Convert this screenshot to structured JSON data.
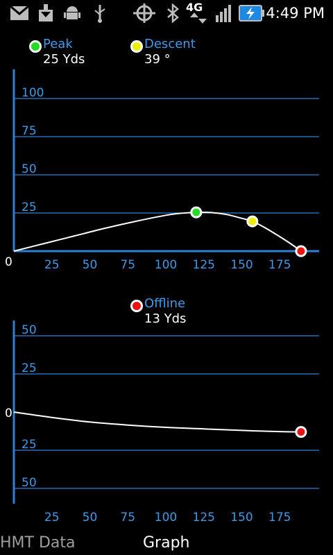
{
  "status_bar": {
    "time": "4:49 PM",
    "network": "4G",
    "icons": [
      "gmail-icon",
      "download-icon",
      "android-debug-icon",
      "usb-icon",
      "gps-icon",
      "bluetooth-icon",
      "network-4g-icon",
      "signal-icon",
      "battery-charging-icon"
    ]
  },
  "top_legend": {
    "peak": {
      "label": "Peak",
      "value": "25 Yds",
      "color": "#22dd22"
    },
    "descent": {
      "label": "Descent",
      "value": "39 °",
      "color": "#eeee00"
    }
  },
  "bottom_legend": {
    "offline": {
      "label": "Offline",
      "value": "13 Yds",
      "color": "#ee1111"
    }
  },
  "chart_data": [
    {
      "type": "line",
      "x_ticks": [
        "25",
        "50",
        "75",
        "100",
        "125",
        "150",
        "175"
      ],
      "y_ticks": [
        "25",
        "50",
        "75",
        "100"
      ],
      "origin_label": "0",
      "xlim": [
        0,
        200
      ],
      "ylim": [
        0,
        110
      ],
      "series": [
        {
          "x": [
            0,
            20,
            40,
            60,
            80,
            100,
            110,
            120,
            130,
            140,
            150,
            157,
            165,
            175,
            182,
            189
          ],
          "y": [
            0,
            5,
            10,
            15,
            19.5,
            23.5,
            24.8,
            25.4,
            25.3,
            24,
            21.5,
            19.5,
            15.5,
            9.5,
            5,
            0
          ]
        }
      ],
      "markers": [
        {
          "x": 120,
          "y": 25.4,
          "color": "#22dd22"
        },
        {
          "x": 157,
          "y": 19.5,
          "color": "#eeee00"
        },
        {
          "x": 189,
          "y": 0,
          "color": "#ee1111"
        }
      ]
    },
    {
      "type": "line",
      "x_ticks": [
        "25",
        "50",
        "75",
        "100",
        "125",
        "150",
        "175"
      ],
      "y_ticks_top": [
        "50",
        "25"
      ],
      "y_ticks_bottom": [
        "25",
        "50"
      ],
      "origin_label": "0",
      "xlim": [
        0,
        200
      ],
      "ylim": [
        -60,
        60
      ],
      "series": [
        {
          "x": [
            0,
            25,
            50,
            75,
            100,
            125,
            150,
            175,
            189
          ],
          "y": [
            0,
            -3.5,
            -6.5,
            -8.5,
            -10,
            -11,
            -12,
            -12.8,
            -13
          ]
        }
      ],
      "markers": [
        {
          "x": 189,
          "y": -13,
          "color": "#ee1111"
        }
      ]
    }
  ],
  "tabs": [
    {
      "label": "HMT Data",
      "active": false
    },
    {
      "label": "Graph",
      "active": true
    }
  ]
}
